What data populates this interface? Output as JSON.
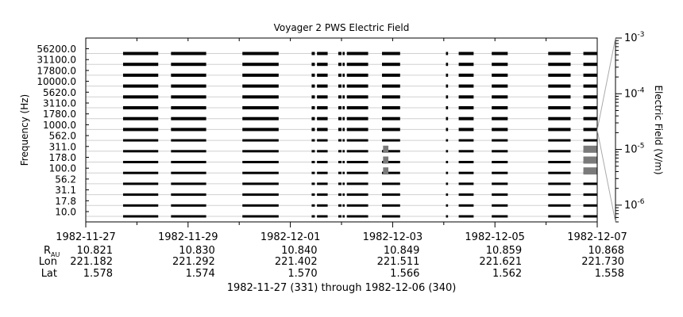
{
  "chart_data": {
    "type": "heatmap",
    "title": "Voyager 2 PWS Electric Field",
    "ylabel": "Frequency (Hz)",
    "colorbar_label": "Electric Field (V/m)",
    "colorbar_ticks": [
      {
        "base": "10",
        "exp": "-3",
        "value": 0.001
      },
      {
        "base": "10",
        "exp": "-4",
        "value": 0.0001
      },
      {
        "base": "10",
        "exp": "-5",
        "value": 1e-05
      },
      {
        "base": "10",
        "exp": "-6",
        "value": 1e-06
      }
    ],
    "colorbar_range": [
      5e-07,
      0.001
    ],
    "colorbar_scale": "log",
    "xlim": [
      "1982-11-27",
      "1982-12-07"
    ],
    "x_ticks": [
      "1982-11-27",
      "1982-11-29",
      "1982-12-01",
      "1982-12-03",
      "1982-12-05",
      "1982-12-07"
    ],
    "y_channels": [
      "10.0",
      "17.8",
      "31.1",
      "56.2",
      "100.0",
      "178.0",
      "311.0",
      "562.0",
      "1000.0",
      "1780.0",
      "3110.0",
      "5620.0",
      "10000.0",
      "17800.0",
      "31100.0",
      "56200.0"
    ],
    "data_blocks": [
      {
        "start": "1982-11-27 17:30",
        "end": "1982-11-28 10:00"
      },
      {
        "start": "1982-11-28 16:00",
        "end": "1982-11-29 08:30"
      },
      {
        "start": "1982-11-30 01:30",
        "end": "1982-11-30 18:30"
      },
      {
        "start": "1982-12-01 10:00",
        "end": "1982-12-01 11:30"
      },
      {
        "start": "1982-12-01 12:30",
        "end": "1982-12-01 17:30"
      },
      {
        "start": "1982-12-01 22:30",
        "end": "1982-12-02 00:00"
      },
      {
        "start": "1982-12-02 00:30",
        "end": "1982-12-02 01:30"
      },
      {
        "start": "1982-12-02 02:30",
        "end": "1982-12-02 12:30"
      },
      {
        "start": "1982-12-02 19:00",
        "end": "1982-12-03 03:30"
      },
      {
        "start": "1982-12-04 01:00",
        "end": "1982-12-04 02:00"
      },
      {
        "start": "1982-12-04 07:00",
        "end": "1982-12-04 14:00"
      },
      {
        "start": "1982-12-04 22:30",
        "end": "1982-12-05 06:00"
      },
      {
        "start": "1982-12-06 01:00",
        "end": "1982-12-06 11:30"
      },
      {
        "start": "1982-12-06 17:30",
        "end": "1982-12-07 00:00"
      }
    ],
    "enhanced_emission": [
      {
        "start": "1982-12-02 19:30",
        "end": "1982-12-02 22:00",
        "channels": [
          "100.0",
          "178.0",
          "311.0"
        ]
      },
      {
        "start": "1982-12-06 17:30",
        "end": "1982-12-07 00:00",
        "channels": [
          "100.0",
          "178.0",
          "311.0"
        ]
      }
    ],
    "ephemeris": {
      "labels": {
        "r": "R",
        "r_sub": "AU",
        "lon": "Lon",
        "lat": "Lat"
      },
      "r": [
        "10.821",
        "10.830",
        "10.840",
        "10.849",
        "10.859",
        "10.868"
      ],
      "lon": [
        "221.182",
        "221.292",
        "221.402",
        "221.511",
        "221.621",
        "221.730"
      ],
      "lat": [
        "1.578",
        "1.574",
        "1.570",
        "1.566",
        "1.562",
        "1.558"
      ]
    },
    "footer": "1982-11-27 (331) through 1982-12-06 (340)"
  }
}
